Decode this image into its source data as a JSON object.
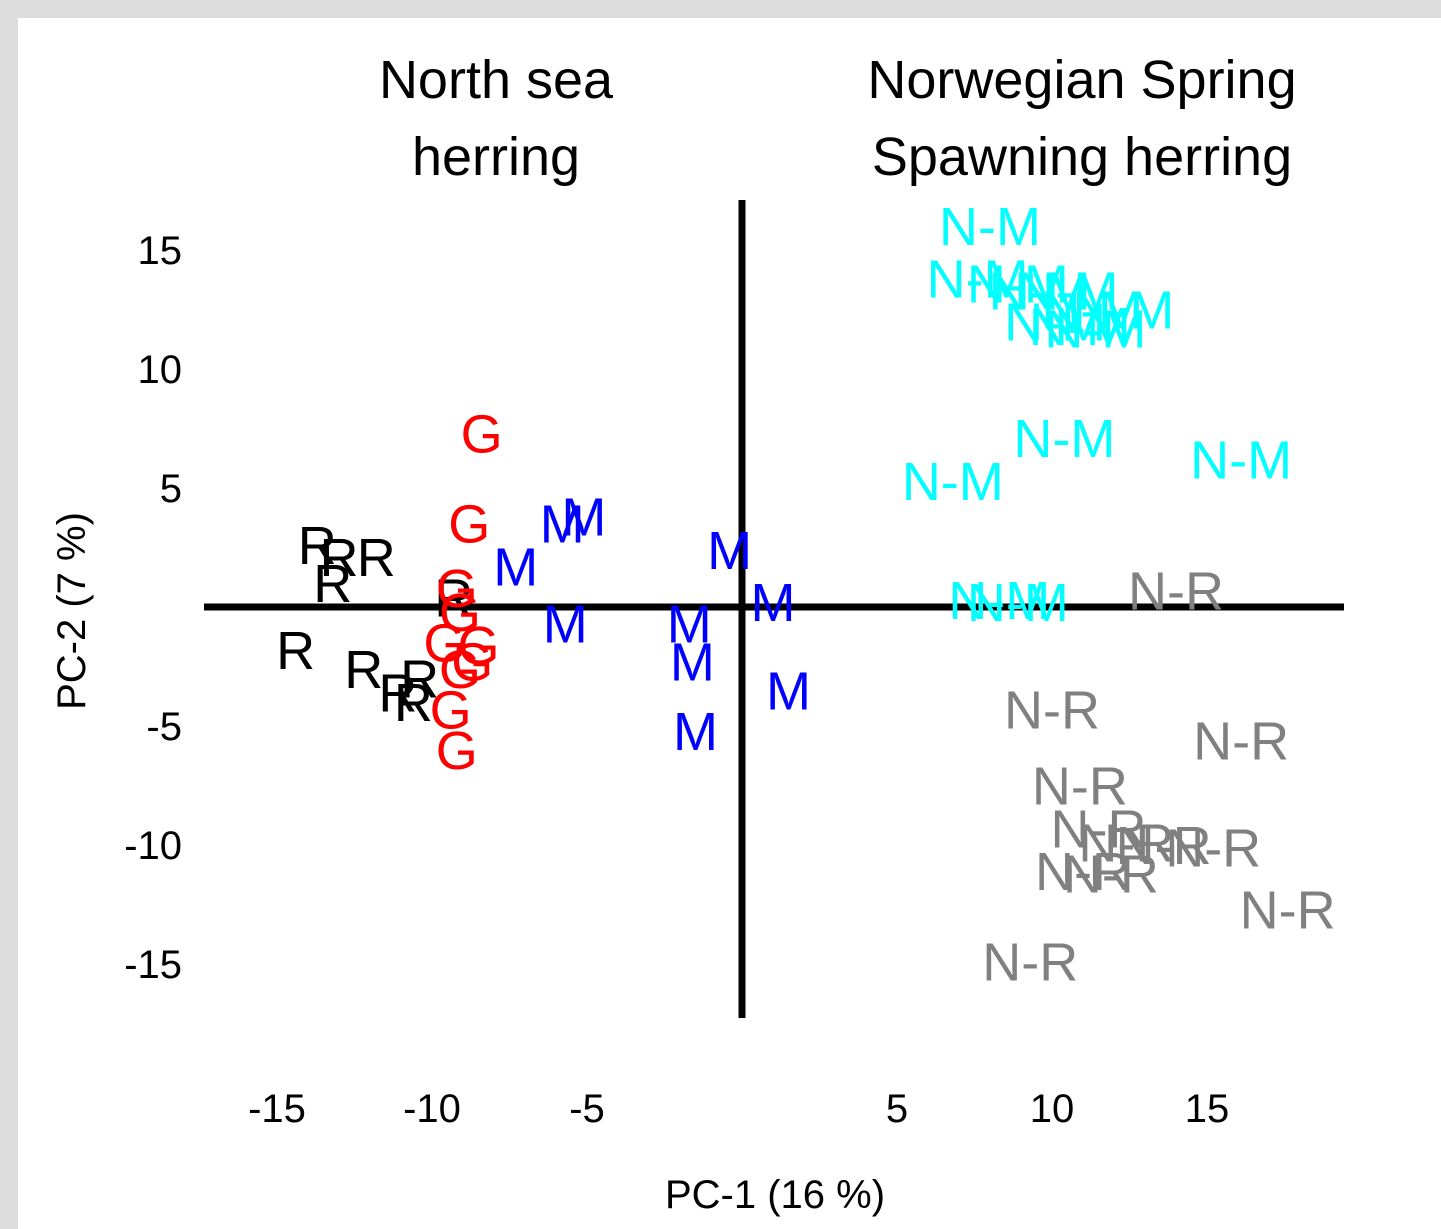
{
  "chart_data": {
    "type": "scatter",
    "xlabel": "PC-1 (16 %)",
    "ylabel": "PC-2 (7 %)",
    "xlim": [
      -19,
      19
    ],
    "ylim": [
      -17.5,
      17
    ],
    "x_ticks": [
      -15,
      -10,
      -5,
      5,
      10,
      15
    ],
    "y_ticks": [
      15,
      10,
      5,
      -5,
      -10,
      -15
    ],
    "grid": false,
    "group_labels": [
      {
        "lines": [
          "North sea",
          "herring"
        ],
        "side": "left"
      },
      {
        "lines": [
          "Norwegian Spring",
          "Spawning herring"
        ],
        "side": "right"
      }
    ],
    "series": [
      {
        "label": "R",
        "color": "#000000",
        "points": [
          [
            -13.7,
            2.6
          ],
          [
            -13.0,
            2.1
          ],
          [
            -13.2,
            1.0
          ],
          [
            -11.8,
            2.1
          ],
          [
            -14.4,
            -1.8
          ],
          [
            -12.2,
            -2.6
          ],
          [
            -10.4,
            -3.0
          ],
          [
            -11.1,
            -3.6
          ],
          [
            -10.6,
            -4.0
          ],
          [
            -9.3,
            0.4
          ]
        ]
      },
      {
        "label": "G",
        "color": "#ff0000",
        "points": [
          [
            -8.4,
            7.3
          ],
          [
            -8.8,
            3.5
          ],
          [
            -9.2,
            0.8
          ],
          [
            -9.1,
            -0.2
          ],
          [
            -9.6,
            -1.5
          ],
          [
            -8.5,
            -1.6
          ],
          [
            -8.7,
            -2.3
          ],
          [
            -9.1,
            -2.6
          ],
          [
            -9.4,
            -4.3
          ],
          [
            -9.2,
            -6.0
          ]
        ]
      },
      {
        "label": "M",
        "color": "#0000ff",
        "points": [
          [
            -5.1,
            3.8
          ],
          [
            -5.8,
            3.5
          ],
          [
            -7.3,
            1.7
          ],
          [
            -5.7,
            -0.7
          ],
          [
            -1.7,
            -0.7
          ],
          [
            -1.6,
            -2.3
          ],
          [
            -0.4,
            2.4
          ],
          [
            1.0,
            0.2
          ],
          [
            1.5,
            -3.5
          ],
          [
            -1.5,
            -5.2
          ]
        ]
      },
      {
        "label": "N-M",
        "color": "#00ffff",
        "points": [
          [
            8.0,
            16.0
          ],
          [
            7.6,
            13.8
          ],
          [
            8.9,
            13.6
          ],
          [
            9.6,
            13.3
          ],
          [
            10.5,
            13.3
          ],
          [
            11.3,
            12.5
          ],
          [
            12.3,
            12.5
          ],
          [
            10.1,
            12.0
          ],
          [
            10.9,
            11.8
          ],
          [
            11.4,
            11.7
          ],
          [
            10.4,
            7.1
          ],
          [
            6.8,
            5.3
          ],
          [
            16.1,
            6.2
          ],
          [
            8.3,
            0.3
          ],
          [
            8.9,
            0.2
          ]
        ]
      },
      {
        "label": "N-R",
        "color": "#808080",
        "points": [
          [
            14.0,
            0.7
          ],
          [
            10.0,
            -4.3
          ],
          [
            16.1,
            -5.6
          ],
          [
            10.9,
            -7.5
          ],
          [
            11.5,
            -9.3
          ],
          [
            12.4,
            -9.9
          ],
          [
            13.6,
            -10.0
          ],
          [
            15.2,
            -10.1
          ],
          [
            11.0,
            -11.1
          ],
          [
            11.9,
            -11.2
          ],
          [
            17.6,
            -12.7
          ],
          [
            9.3,
            -14.9
          ]
        ]
      }
    ]
  }
}
